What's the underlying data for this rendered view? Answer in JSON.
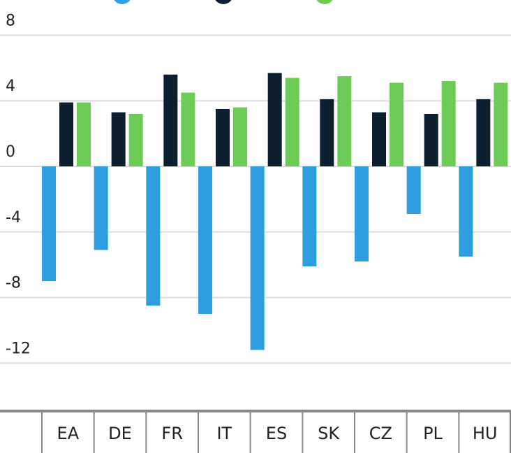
{
  "chart_data": {
    "type": "bar",
    "categories": [
      "EA",
      "DE",
      "FR",
      "IT",
      "ES",
      "SK",
      "CZ",
      "PL",
      "HU"
    ],
    "series": [
      {
        "color": "#2f9ee0",
        "values": [
          -7.0,
          -5.1,
          -8.5,
          -9.0,
          -11.2,
          -6.1,
          -5.8,
          -2.9,
          -5.5
        ]
      },
      {
        "color": "#0d1e2e",
        "values": [
          3.9,
          3.3,
          5.6,
          3.5,
          5.7,
          4.1,
          3.3,
          3.2,
          4.1
        ]
      },
      {
        "color": "#6dcc55",
        "values": [
          3.9,
          3.2,
          4.5,
          3.6,
          5.4,
          5.5,
          5.1,
          5.2,
          5.1
        ]
      }
    ],
    "ylim": [
      -14.8,
      8.5
    ],
    "yticks": [
      8,
      4,
      0,
      -4,
      -8,
      -12
    ],
    "grid": true
  }
}
